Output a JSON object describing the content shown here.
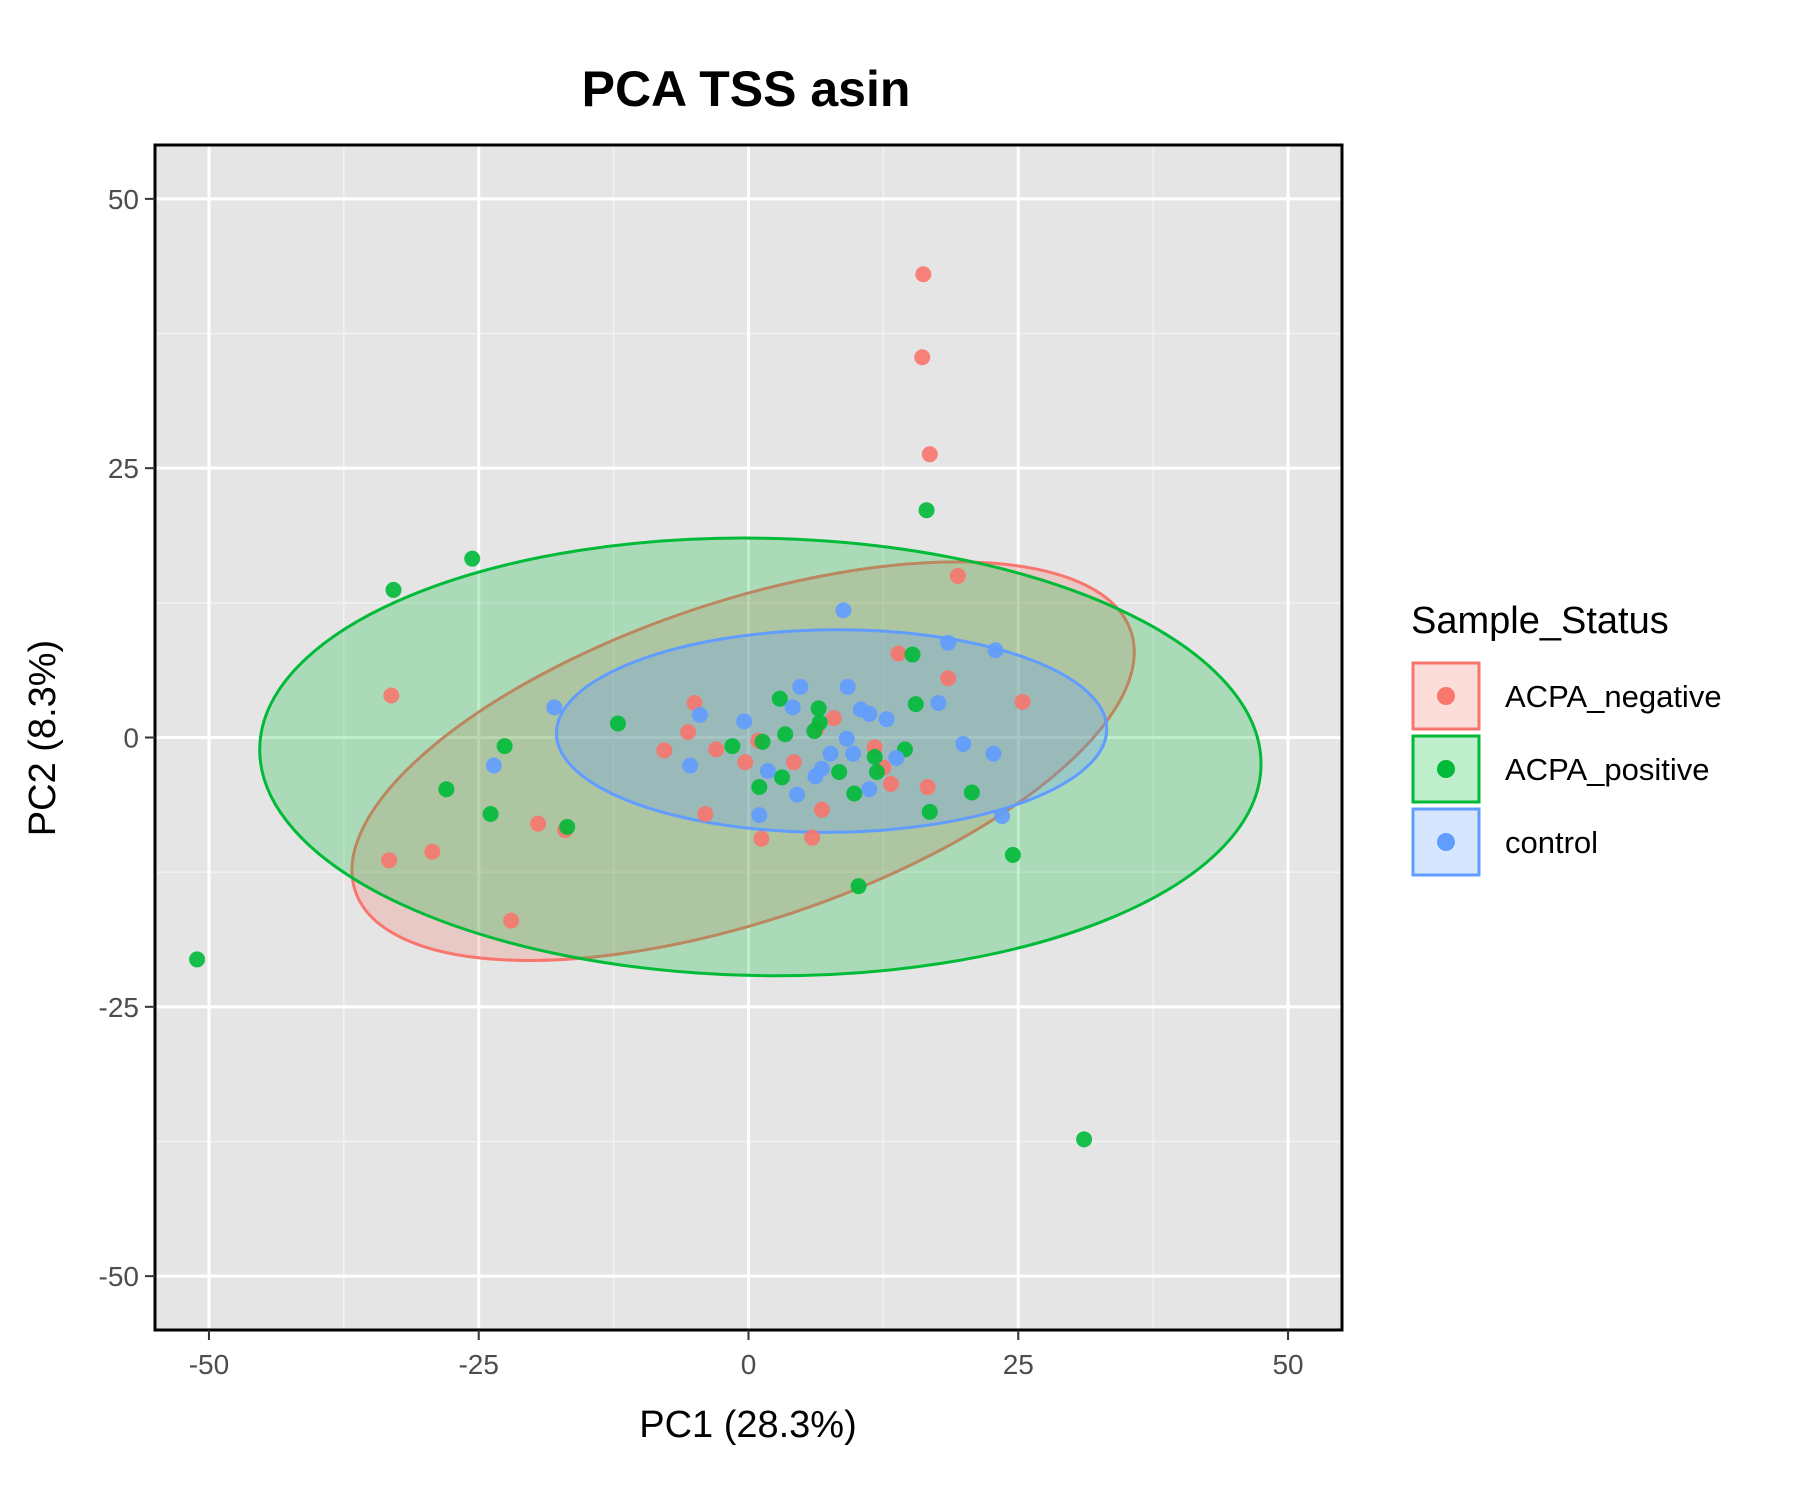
{
  "chart_data": {
    "type": "scatter",
    "title": "PCA TSS asin",
    "xlabel": "PC1 (28.3%)",
    "ylabel": "PC2 (8.3%)",
    "xlim": [
      -55,
      55
    ],
    "ylim": [
      -55,
      55
    ],
    "x_ticks": [
      -50,
      -25,
      0,
      25,
      50
    ],
    "y_ticks": [
      -50,
      -25,
      0,
      25,
      50
    ],
    "x_tick_labels": [
      "-50",
      "-25",
      "0",
      "25",
      "50"
    ],
    "y_tick_labels": [
      "-50",
      "-25",
      "0",
      "25",
      "50"
    ],
    "grid": true,
    "legend": {
      "title": "Sample_Status",
      "position": "right"
    },
    "series": [
      {
        "name": "ACPA_negative",
        "color": "#F8766D",
        "points": [
          [
            16.2,
            43.0
          ],
          [
            16.1,
            35.3
          ],
          [
            16.8,
            26.3
          ],
          [
            19.4,
            15.0
          ],
          [
            13.9,
            7.8
          ],
          [
            18.5,
            5.5
          ],
          [
            25.4,
            3.3
          ],
          [
            -33.1,
            3.9
          ],
          [
            -5.0,
            3.2
          ],
          [
            -5.6,
            0.5
          ],
          [
            -3.0,
            -1.1
          ],
          [
            -7.8,
            -1.2
          ],
          [
            0.9,
            -0.3
          ],
          [
            7.9,
            1.8
          ],
          [
            11.7,
            -0.9
          ],
          [
            -0.3,
            -2.3
          ],
          [
            4.2,
            -2.3
          ],
          [
            6.3,
            0.8
          ],
          [
            12.5,
            -2.8
          ],
          [
            13.2,
            -4.3
          ],
          [
            16.6,
            -4.6
          ],
          [
            -4.0,
            -7.1
          ],
          [
            6.8,
            -6.7
          ],
          [
            1.2,
            -9.4
          ],
          [
            5.9,
            -9.3
          ],
          [
            -19.5,
            -8.0
          ],
          [
            -17.0,
            -8.6
          ],
          [
            -29.3,
            -10.6
          ],
          [
            -33.3,
            -11.4
          ],
          [
            -22.0,
            -17.0
          ]
        ]
      },
      {
        "name": "ACPA_positive",
        "color": "#00BA38",
        "points": [
          [
            16.5,
            21.1
          ],
          [
            -25.6,
            16.6
          ],
          [
            -32.9,
            13.7
          ],
          [
            15.2,
            7.7
          ],
          [
            15.5,
            3.1
          ],
          [
            2.9,
            3.6
          ],
          [
            6.5,
            2.7
          ],
          [
            6.6,
            1.4
          ],
          [
            -12.1,
            1.3
          ],
          [
            3.4,
            0.3
          ],
          [
            -1.5,
            -0.8
          ],
          [
            -22.6,
            -0.8
          ],
          [
            1.3,
            -0.4
          ],
          [
            6.1,
            0.6
          ],
          [
            14.5,
            -1.1
          ],
          [
            11.7,
            -1.8
          ],
          [
            11.9,
            -3.2
          ],
          [
            8.4,
            -3.2
          ],
          [
            3.1,
            -3.7
          ],
          [
            1.0,
            -4.6
          ],
          [
            9.8,
            -5.2
          ],
          [
            20.7,
            -5.1
          ],
          [
            16.8,
            -6.9
          ],
          [
            -28.0,
            -4.8
          ],
          [
            -23.9,
            -7.1
          ],
          [
            -16.8,
            -8.3
          ],
          [
            10.2,
            -13.8
          ],
          [
            24.5,
            -10.9
          ],
          [
            -51.1,
            -20.6
          ],
          [
            31.1,
            -37.3
          ]
        ]
      },
      {
        "name": "control",
        "color": "#619CFF",
        "points": [
          [
            8.8,
            11.8
          ],
          [
            18.5,
            8.8
          ],
          [
            22.9,
            8.1
          ],
          [
            9.2,
            4.7
          ],
          [
            4.8,
            4.7
          ],
          [
            -18.0,
            2.8
          ],
          [
            4.1,
            2.8
          ],
          [
            10.4,
            2.6
          ],
          [
            11.2,
            2.2
          ],
          [
            12.8,
            1.7
          ],
          [
            17.6,
            3.2
          ],
          [
            -4.5,
            2.1
          ],
          [
            -0.4,
            1.5
          ],
          [
            9.1,
            -0.1
          ],
          [
            9.7,
            -1.5
          ],
          [
            7.6,
            -1.5
          ],
          [
            13.7,
            -1.9
          ],
          [
            19.9,
            -0.6
          ],
          [
            22.7,
            -1.5
          ],
          [
            -5.4,
            -2.6
          ],
          [
            -23.6,
            -2.6
          ],
          [
            1.8,
            -3.1
          ],
          [
            6.8,
            -2.9
          ],
          [
            6.2,
            -3.6
          ],
          [
            11.2,
            -4.8
          ],
          [
            4.5,
            -5.3
          ],
          [
            1.0,
            -7.2
          ],
          [
            23.5,
            -7.3
          ]
        ]
      }
    ],
    "ellipses": [
      {
        "series": "ACPA_negative",
        "color": "#F8766D",
        "center": [
          -0.5,
          -2.2
        ],
        "semi_axes": [
          37.9,
          14.8
        ],
        "rotation_deg": 18.5
      },
      {
        "series": "ACPA_positive",
        "color": "#00BA38",
        "center": [
          1.1,
          -1.8
        ],
        "semi_axes": [
          46.4,
          20.3
        ],
        "rotation_deg": -1.0
      },
      {
        "series": "control",
        "color": "#619CFF",
        "center": [
          7.7,
          0.6
        ],
        "semi_axes": [
          25.5,
          9.4
        ],
        "rotation_deg": 0.5
      }
    ]
  }
}
